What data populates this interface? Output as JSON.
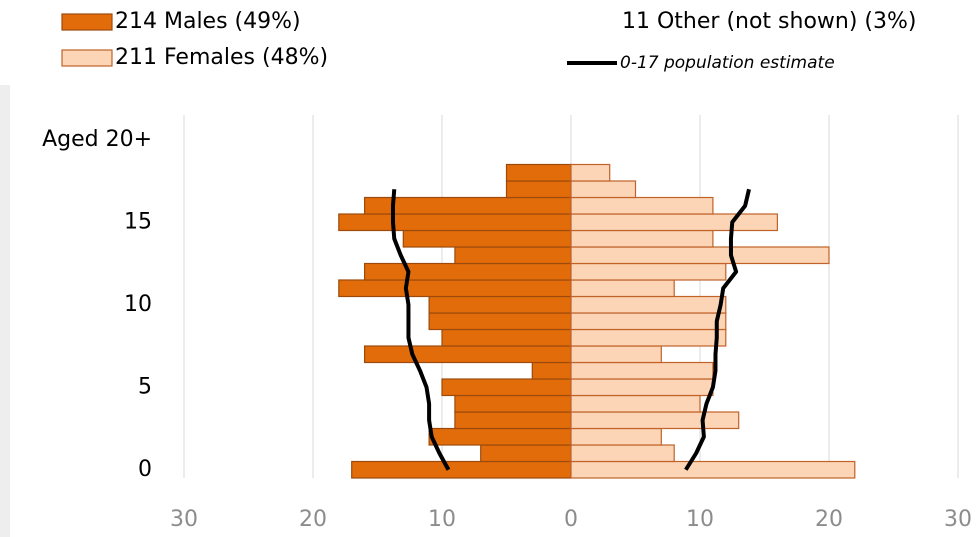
{
  "chart_data": {
    "type": "pyramid",
    "ages": [
      0,
      1,
      2,
      3,
      4,
      5,
      6,
      7,
      8,
      9,
      10,
      11,
      12,
      13,
      14,
      15,
      16,
      17,
      18
    ],
    "series": [
      {
        "name": "214 Males (49%)",
        "color": "#e36c0a",
        "edge": "#9c4a0c",
        "side": "left",
        "values": [
          17,
          7,
          11,
          9,
          9,
          10,
          3,
          16,
          10,
          11,
          11,
          18,
          16,
          9,
          13,
          18,
          16,
          5,
          5
        ]
      },
      {
        "name": "211 Females (48%)",
        "color": "#fbd5b5",
        "edge": "#c0622a",
        "side": "right",
        "values": [
          22,
          8,
          7,
          13,
          10,
          11,
          11,
          7,
          12,
          12,
          12,
          8,
          12,
          20,
          11,
          16,
          11,
          5,
          3
        ]
      }
    ],
    "note": "11 Other (not shown) (3%)",
    "estimate": {
      "name": "0-17 population estimate",
      "color": "#000000",
      "ages": [
        0,
        1,
        2,
        3,
        4,
        5,
        6,
        7,
        8,
        9,
        10,
        11,
        12,
        13,
        14,
        15,
        16,
        17
      ],
      "left": [
        9.5,
        10.2,
        10.8,
        11,
        11,
        11.2,
        11.7,
        12.3,
        12.6,
        12.6,
        12.6,
        12.8,
        12.6,
        13.2,
        13.7,
        13.8,
        13.8,
        13.7
      ],
      "right": [
        8.9,
        9.7,
        10.3,
        10.2,
        10.5,
        11,
        11.2,
        11.2,
        11.3,
        11.3,
        11.6,
        11.8,
        12.8,
        12.4,
        12.4,
        12.5,
        13.5,
        13.8
      ]
    },
    "xlim": [
      -30,
      30
    ],
    "xticks": [
      {
        "value": -30,
        "label": "30"
      },
      {
        "value": -20,
        "label": "20"
      },
      {
        "value": -10,
        "label": "10"
      },
      0,
      10,
      20,
      30
    ],
    "ylim": [
      -0.5,
      21.5
    ],
    "yticks": [
      0,
      5,
      10,
      15,
      {
        "value": 20,
        "label": "Aged 20+"
      }
    ],
    "grid": true
  }
}
